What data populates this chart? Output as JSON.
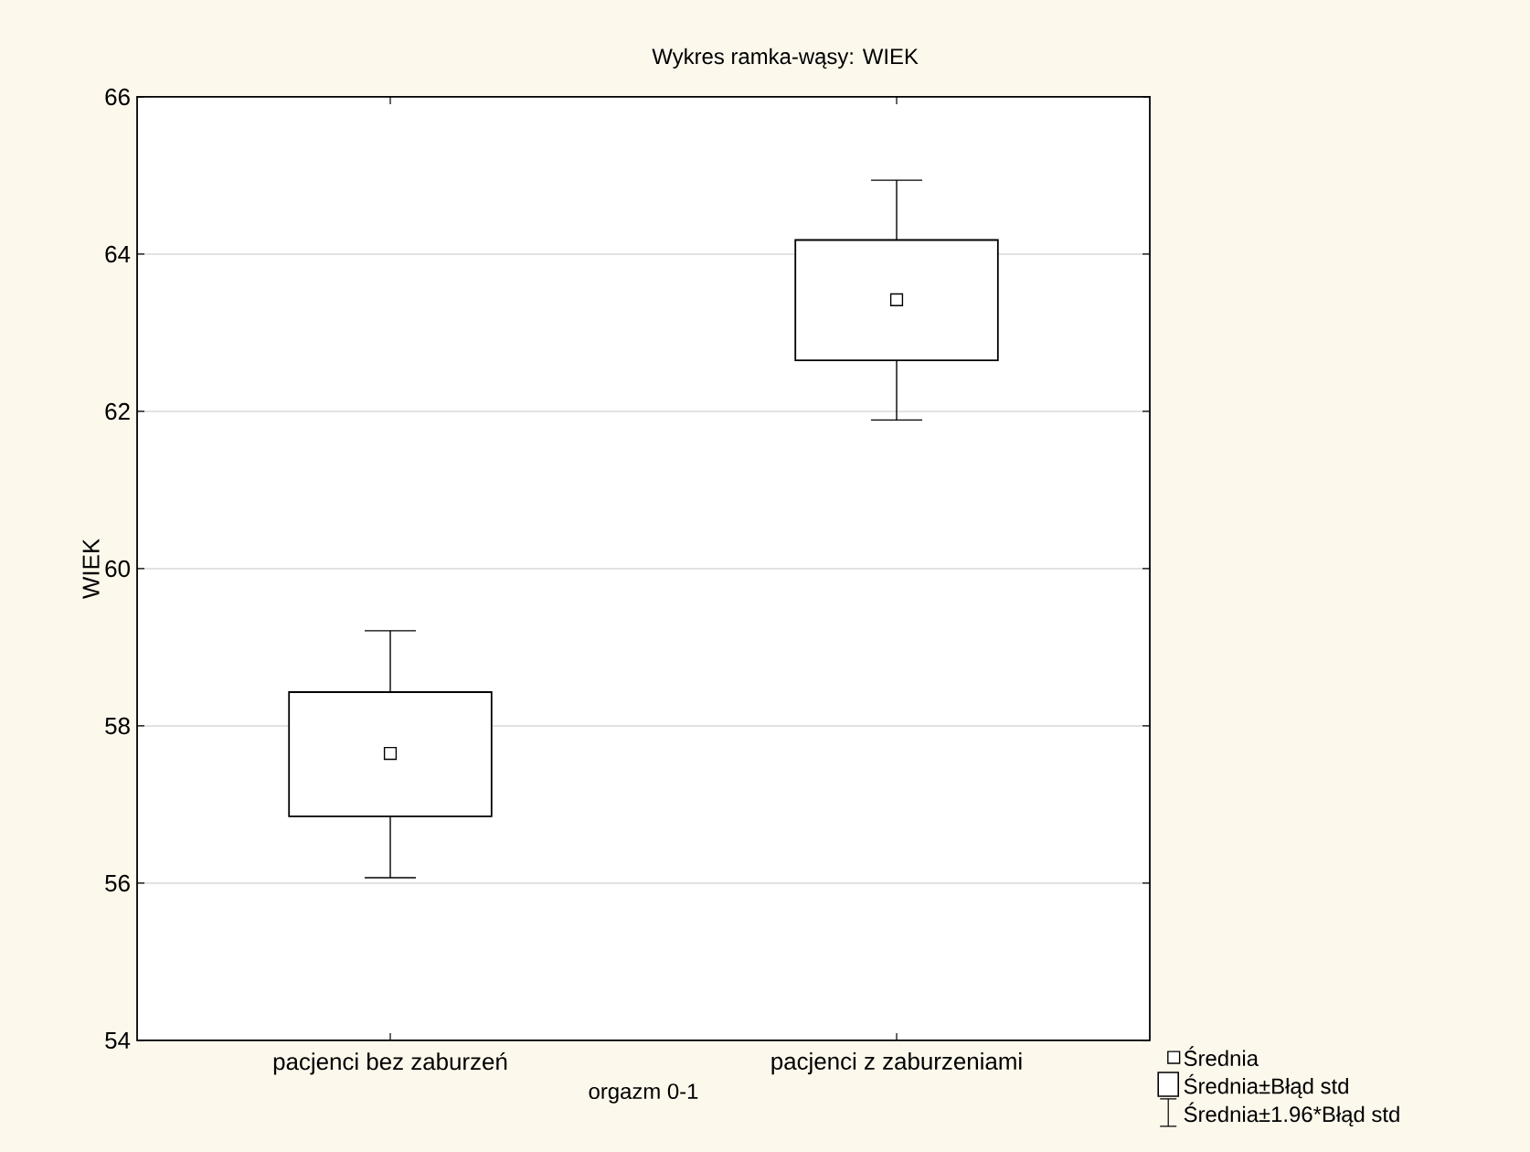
{
  "chart_data": {
    "type": "box",
    "title": "Wykres ramka-wąsy:      WIEK",
    "xlabel": "orgazm 0-1",
    "ylabel": "WIEK",
    "categories": [
      "pacjenci bez zaburzeń",
      "pacjenci z zaburzeniami"
    ],
    "ylim": [
      54,
      66
    ],
    "yticks": [
      54,
      56,
      58,
      60,
      62,
      64,
      66
    ],
    "grid": "y",
    "legend": "bottom right",
    "annotations": [
      "Średnia±1.96*Błąd std"
    ],
    "series": [
      {
        "name": "Średnia",
        "type": "scatter",
        "color": "#000000",
        "marker": "square",
        "values": [
          57.65,
          63.42
        ],
        "errors": [
          [
            56.07,
            59.21
          ],
          [
            61.89,
            64.94
          ]
        ]
      },
      {
        "name": "Średnia±Błąd std",
        "type": "bar",
        "color": "#000000",
        "base": [
          56.85,
          62.65
        ],
        "values": [
          1.58,
          1.53
        ]
      }
    ]
  }
}
